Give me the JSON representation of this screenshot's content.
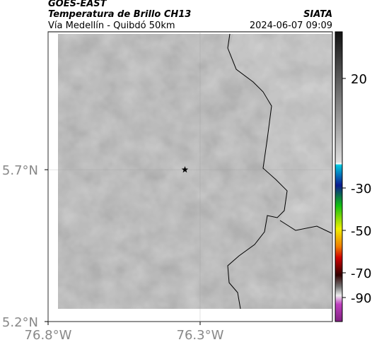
{
  "header": {
    "title": "GOES-EAST",
    "subtitle": "Temperatura de Brillo CH13",
    "source": "SIATA",
    "route": "Vía Medellín - Quibdó 50km",
    "timestamp": "2024-06-07 09:09"
  },
  "map": {
    "xlim": [
      -76.8,
      -75.865
    ],
    "ylim": [
      5.2,
      6.154
    ],
    "xticks": [
      {
        "value": -76.8,
        "label": "76.8°W"
      },
      {
        "value": -76.3,
        "label": "76.3°W"
      }
    ],
    "yticks": [
      {
        "value": 5.2,
        "label": "5.2°N"
      },
      {
        "value": 5.7,
        "label": "5.7°N"
      }
    ],
    "grid": true,
    "marker": {
      "lon": -76.35,
      "lat": 5.7
    }
  },
  "colorbar": {
    "ticks": [
      20,
      -30,
      -50,
      -70,
      -90
    ]
  }
}
